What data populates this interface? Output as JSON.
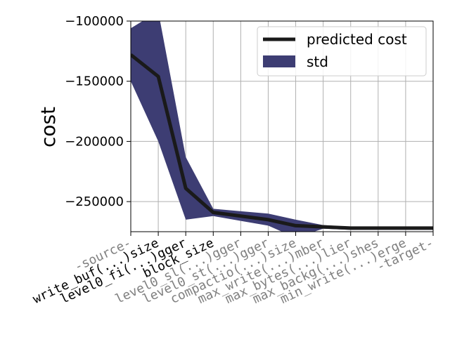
{
  "chart_data": {
    "type": "line",
    "title": "",
    "xlabel": "",
    "ylabel": "cost",
    "ylim": [
      -275000,
      -100000
    ],
    "yticks": [
      -100000,
      -150000,
      -200000,
      -250000
    ],
    "ytick_labels": [
      "−100000",
      "−150000",
      "−200000",
      "−250000"
    ],
    "grid": true,
    "legend_position": "top-right",
    "categories": [
      {
        "label": "-source-",
        "color": "#808080"
      },
      {
        "label": "write_buf(...)size",
        "color": "#000000"
      },
      {
        "label": "level0_fi(...)gger",
        "color": "#000000"
      },
      {
        "label": "block_size",
        "color": "#000000"
      },
      {
        "label": "level0_sl(...)gger",
        "color": "#808080"
      },
      {
        "label": "level0_st(...)gger",
        "color": "#808080"
      },
      {
        "label": "compactio(...)size",
        "color": "#808080"
      },
      {
        "label": "max_write(...)mber",
        "color": "#808080"
      },
      {
        "label": "max_bytes(...)lier",
        "color": "#808080"
      },
      {
        "label": "max_backg(...)shes",
        "color": "#808080"
      },
      {
        "label": "min_write(...)erge",
        "color": "#808080"
      },
      {
        "label": "-target-",
        "color": "#808080"
      }
    ],
    "series": [
      {
        "name": "predicted cost",
        "kind": "line",
        "color": "#1a1a1a",
        "values": [
          -128000,
          -146000,
          -239000,
          -259000,
          -262000,
          -265000,
          -270000,
          -271000,
          -272000,
          -272000,
          -272000,
          -272000
        ]
      },
      {
        "name": "std",
        "kind": "band",
        "color": "#3d3d73",
        "lower": [
          -150000,
          -200000,
          -265000,
          -262000,
          -266000,
          -270000,
          -280000,
          -272500,
          -273500,
          -273500,
          -273500,
          -273500
        ],
        "upper": [
          -106000,
          -92000,
          -213000,
          -256000,
          -258000,
          -260000,
          -265000,
          -269500,
          -271000,
          -271000,
          -271000,
          -271000
        ]
      }
    ]
  }
}
